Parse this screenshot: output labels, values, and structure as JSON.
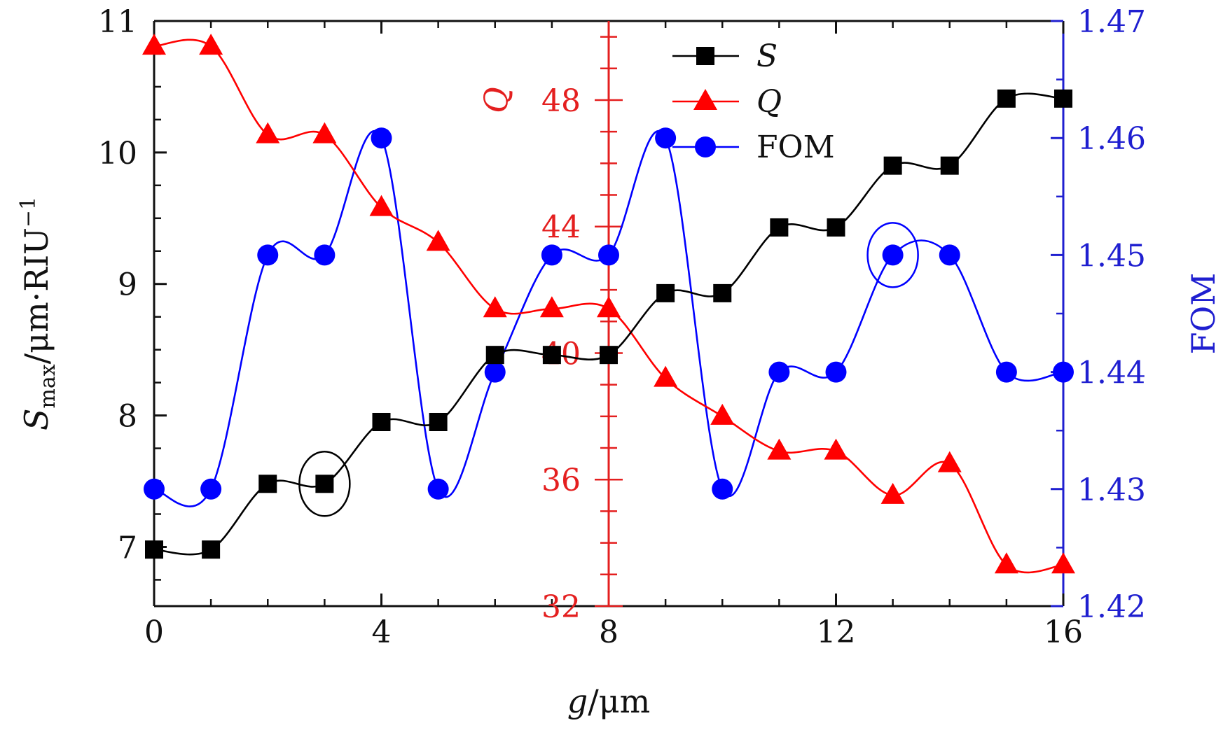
{
  "chart_data": {
    "type": "line",
    "x": [
      0,
      1,
      2,
      3,
      4,
      5,
      6,
      7,
      8,
      9,
      10,
      11,
      12,
      13,
      14,
      15,
      16
    ],
    "xlabel": "g/μm",
    "xlim": [
      0,
      16
    ],
    "x_ticks": [
      "0",
      "4",
      "8",
      "12",
      "16"
    ],
    "left_axis": {
      "label": "Smax/μm·RIU−1",
      "ylim": [
        6.55,
        11
      ],
      "ticks": [
        "7",
        "8",
        "9",
        "10",
        "11"
      ]
    },
    "right_axis": {
      "label": "FOM",
      "ylim": [
        1.42,
        1.47
      ],
      "ticks": [
        "1.42",
        "1.43",
        "1.44",
        "1.45",
        "1.46",
        "1.47"
      ]
    },
    "middle_axis": {
      "label": "Q",
      "at_x": 8,
      "ylim": [
        32,
        50.5
      ],
      "ticks": [
        "32",
        "36",
        "40",
        "44",
        "48"
      ]
    },
    "series": [
      {
        "name": "S",
        "axis": "left",
        "marker": "square",
        "color": "#000000",
        "values": [
          6.98,
          6.98,
          7.48,
          7.48,
          7.95,
          7.95,
          8.46,
          8.46,
          8.46,
          8.93,
          8.93,
          9.43,
          9.43,
          9.9,
          9.9,
          10.41,
          10.41
        ]
      },
      {
        "name": "Q",
        "axis": "middle",
        "marker": "triangle",
        "color": "#ff0000",
        "values": [
          49.7,
          49.7,
          46.9,
          46.9,
          44.6,
          43.5,
          41.4,
          41.4,
          41.4,
          39.2,
          38.0,
          36.9,
          36.9,
          35.5,
          36.5,
          33.3,
          33.3
        ]
      },
      {
        "name": "FOM",
        "axis": "right",
        "marker": "circle",
        "color": "#0000ff",
        "values": [
          1.43,
          1.43,
          1.45,
          1.45,
          1.46,
          1.43,
          1.44,
          1.45,
          1.45,
          1.46,
          1.43,
          1.44,
          1.44,
          1.45,
          1.45,
          1.44,
          1.44
        ]
      }
    ],
    "legend": {
      "placement": "top-center",
      "entries": [
        "S",
        "Q",
        "FOM"
      ]
    },
    "annotations": [
      {
        "type": "ellipse",
        "series": "S",
        "x": 3
      },
      {
        "type": "ellipse",
        "series": "FOM",
        "x": 13
      }
    ],
    "grid": false
  }
}
